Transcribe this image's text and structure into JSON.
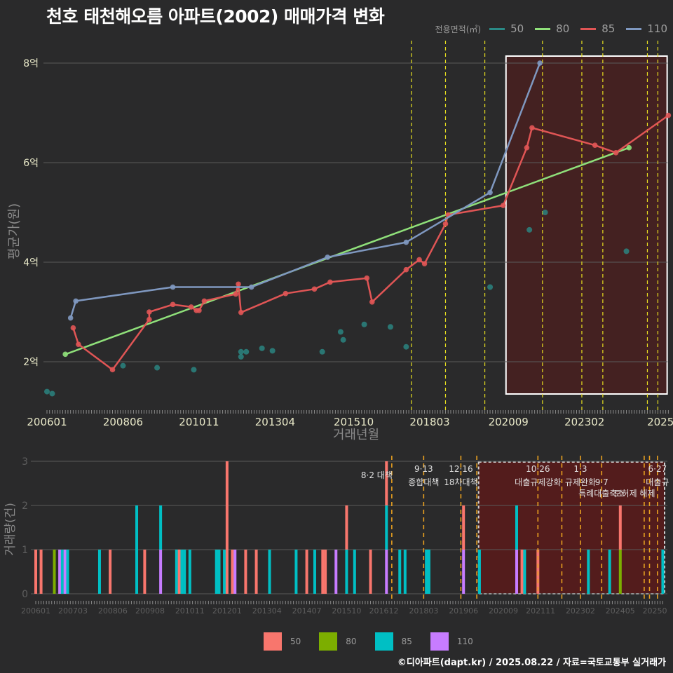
{
  "title": "천호 태천해오름 아파트(2002) 매매가격 변화",
  "credit": "©디아파트(dapt.kr) / 2025.08.22 / 자료=국토교통부 실거래가",
  "colors": {
    "background": "#2a2a2b",
    "grid": "#5a5a5a",
    "s50": "#2a8a86",
    "s80": "#8fe07a",
    "s85": "#e05555",
    "s110": "#7f98c0",
    "bar50": "#f8766d",
    "bar80": "#7cae00",
    "bar85": "#00bfc4",
    "bar110": "#c77cff",
    "policy_line": "#e8e020",
    "policy_line_bottom": "#e8a020",
    "highlight_fill": "#5a1a1a"
  },
  "legend_top": {
    "title": "전용면적(㎡)",
    "items": [
      {
        "label": "50",
        "color": "#2a8a86"
      },
      {
        "label": "80",
        "color": "#8fe07a"
      },
      {
        "label": "85",
        "color": "#e05555"
      },
      {
        "label": "110",
        "color": "#7f98c0"
      }
    ]
  },
  "legend_bottom": {
    "items": [
      {
        "label": "50",
        "color": "#f8766d"
      },
      {
        "label": "80",
        "color": "#7cae00"
      },
      {
        "label": "85",
        "color": "#00bfc4"
      },
      {
        "label": "110",
        "color": "#c77cff"
      }
    ]
  },
  "chart_data": [
    {
      "type": "line",
      "title": "천호 태천해오름 아파트(2002) 매매가격 변화",
      "xlabel": "거래년월",
      "ylabel": "평균가(원)",
      "x_unit": "months since 2006-01",
      "x_ticks": [
        {
          "label": "200601",
          "m": 0
        },
        {
          "label": "200806",
          "m": 29
        },
        {
          "label": "201011",
          "m": 58
        },
        {
          "label": "201304",
          "m": 87
        },
        {
          "label": "201510",
          "m": 117
        },
        {
          "label": "201803",
          "m": 146
        },
        {
          "label": "202009",
          "m": 176
        },
        {
          "label": "202302",
          "m": 205
        },
        {
          "label": "2025",
          "m": 234
        }
      ],
      "y_ticks": [
        {
          "label": "2억",
          "v": 2
        },
        {
          "label": "4억",
          "v": 4
        },
        {
          "label": "6억",
          "v": 6
        },
        {
          "label": "8억",
          "v": 8
        }
      ],
      "ylim": [
        1.2,
        8.4
      ],
      "xlim": [
        0,
        237
      ],
      "grid": true,
      "legend_position": "top-right",
      "policy_months": [
        139,
        152,
        167,
        189,
        204,
        212,
        229,
        233
      ],
      "highlight_range": [
        174,
        236
      ],
      "series": [
        {
          "name": "50",
          "mode": "points",
          "points": [
            [
              0,
              1.4
            ],
            [
              2,
              1.36
            ],
            [
              29,
              1.92
            ],
            [
              42,
              1.88
            ],
            [
              56,
              1.84
            ],
            [
              74,
              2.1
            ],
            [
              74,
              2.2
            ],
            [
              76,
              2.2
            ],
            [
              82,
              2.27
            ],
            [
              86,
              2.22
            ],
            [
              105,
              2.2
            ],
            [
              112,
              2.6
            ],
            [
              113,
              2.44
            ],
            [
              121,
              2.75
            ],
            [
              131,
              2.7
            ],
            [
              137,
              2.3
            ],
            [
              169,
              3.5
            ],
            [
              184,
              4.65
            ],
            [
              190,
              5.0
            ],
            [
              221,
              4.22
            ]
          ]
        },
        {
          "name": "80",
          "mode": "line",
          "points": [
            [
              7,
              2.15
            ],
            [
              222,
              6.3
            ]
          ]
        },
        {
          "name": "85",
          "mode": "line",
          "points": [
            [
              10,
              2.68
            ],
            [
              12,
              2.35
            ],
            [
              25,
              1.84
            ],
            [
              39,
              2.85
            ],
            [
              39,
              3.0
            ],
            [
              48,
              3.15
            ],
            [
              55,
              3.1
            ],
            [
              57,
              3.03
            ],
            [
              58,
              3.03
            ],
            [
              60,
              3.22
            ],
            [
              72,
              3.36
            ],
            [
              73,
              3.56
            ],
            [
              74,
              2.99
            ],
            [
              91,
              3.37
            ],
            [
              102,
              3.46
            ],
            [
              108,
              3.6
            ],
            [
              122,
              3.68
            ],
            [
              124,
              3.2
            ],
            [
              137,
              3.85
            ],
            [
              142,
              4.05
            ],
            [
              144,
              3.97
            ],
            [
              152,
              4.77
            ],
            [
              153,
              4.95
            ],
            [
              174,
              5.14
            ],
            [
              183,
              6.3
            ],
            [
              185,
              6.7
            ],
            [
              209,
              6.35
            ],
            [
              217,
              6.2
            ],
            [
              237,
              6.95
            ]
          ]
        },
        {
          "name": "110",
          "mode": "line",
          "points": [
            [
              9,
              2.88
            ],
            [
              11,
              3.22
            ],
            [
              48,
              3.5
            ],
            [
              78,
              3.5
            ],
            [
              107,
              4.1
            ],
            [
              137,
              4.4
            ],
            [
              169,
              5.4
            ],
            [
              188,
              8.0
            ]
          ]
        }
      ]
    },
    {
      "type": "bar",
      "xlabel": "",
      "ylabel": "거래량(건)",
      "x_ticks": [
        {
          "label": "200601",
          "m": 0
        },
        {
          "label": "200703",
          "m": 14
        },
        {
          "label": "200806",
          "m": 29
        },
        {
          "label": "200908",
          "m": 43
        },
        {
          "label": "201011",
          "m": 58
        },
        {
          "label": "201201",
          "m": 72
        },
        {
          "label": "201304",
          "m": 87
        },
        {
          "label": "201407",
          "m": 102
        },
        {
          "label": "201510",
          "m": 117
        },
        {
          "label": "201612",
          "m": 131
        },
        {
          "label": "201803",
          "m": 146
        },
        {
          "label": "201906",
          "m": 161
        },
        {
          "label": "202009",
          "m": 176
        },
        {
          "label": "202111",
          "m": 190
        },
        {
          "label": "202302",
          "m": 205
        },
        {
          "label": "202405",
          "m": 220
        },
        {
          "label": "20250",
          "m": 233
        }
      ],
      "y_ticks": [
        {
          "label": "0",
          "v": 0
        },
        {
          "label": "1",
          "v": 1
        },
        {
          "label": "2",
          "v": 2
        },
        {
          "label": "3",
          "v": 3
        }
      ],
      "ylim": [
        0,
        3
      ],
      "stack_order": [
        "110",
        "80",
        "85",
        "50"
      ],
      "bars": [
        {
          "m": 0,
          "s50": 1
        },
        {
          "m": 2,
          "s50": 1
        },
        {
          "m": 7,
          "s80": 1
        },
        {
          "m": 9,
          "s110": 1
        },
        {
          "m": 10,
          "s85": 1
        },
        {
          "m": 11,
          "s110": 1
        },
        {
          "m": 12,
          "s85": 1
        },
        {
          "m": 24,
          "s85": 1
        },
        {
          "m": 28,
          "s50": 1
        },
        {
          "m": 38,
          "s85": 2
        },
        {
          "m": 41,
          "s50": 1
        },
        {
          "m": 47,
          "s110": 1,
          "s85": 1
        },
        {
          "m": 53,
          "s85": 1
        },
        {
          "m": 54,
          "s50": 1
        },
        {
          "m": 55,
          "s85": 1
        },
        {
          "m": 56,
          "s85": 1
        },
        {
          "m": 58,
          "s85": 1
        },
        {
          "m": 68,
          "s85": 1
        },
        {
          "m": 69,
          "s85": 1
        },
        {
          "m": 71,
          "s85": 1
        },
        {
          "m": 72,
          "s50": 3
        },
        {
          "m": 74,
          "s50": 1
        },
        {
          "m": 75,
          "s110": 1
        },
        {
          "m": 79,
          "s50": 1
        },
        {
          "m": 83,
          "s50": 1
        },
        {
          "m": 88,
          "s85": 1
        },
        {
          "m": 98,
          "s85": 1
        },
        {
          "m": 102,
          "s50": 1
        },
        {
          "m": 105,
          "s85": 1
        },
        {
          "m": 108,
          "s50": 1
        },
        {
          "m": 109,
          "s50": 1
        },
        {
          "m": 113,
          "s110": 1
        },
        {
          "m": 117,
          "s85": 1,
          "s50": 1
        },
        {
          "m": 120,
          "s85": 1
        },
        {
          "m": 126,
          "s50": 1
        },
        {
          "m": 132,
          "s110": 1,
          "s85": 1,
          "s50": 1
        },
        {
          "m": 137,
          "s85": 1
        },
        {
          "m": 139,
          "s85": 1
        },
        {
          "m": 147,
          "s85": 1
        },
        {
          "m": 148,
          "s85": 1
        },
        {
          "m": 161,
          "s110": 1,
          "s50": 1
        },
        {
          "m": 167,
          "s85": 1
        },
        {
          "m": 181,
          "s110": 1,
          "s85": 1
        },
        {
          "m": 183,
          "s50": 1
        },
        {
          "m": 184,
          "s85": 1
        },
        {
          "m": 189,
          "s50": 1
        },
        {
          "m": 208,
          "s85": 1
        },
        {
          "m": 216,
          "s85": 1
        },
        {
          "m": 220,
          "s80": 1,
          "s50": 1
        },
        {
          "m": 236,
          "s85": 1
        }
      ],
      "policy_months": [
        134,
        146,
        160,
        166,
        189,
        198,
        205,
        213,
        229,
        231,
        234
      ],
      "highlight_range": [
        168,
        236
      ],
      "annotations": [
        {
          "m": 134,
          "line1": "",
          "line2": "8·2 대책",
          "align": "end"
        },
        {
          "m": 146,
          "line1": "9·13",
          "line2": "종합대책"
        },
        {
          "m": 160,
          "line1": "12·16",
          "line2": "18차대책"
        },
        {
          "m": 189,
          "line1": "10·26",
          "line2": "대출규제강화"
        },
        {
          "m": 205,
          "line1": "1·3",
          "line2": "규제완화"
        },
        {
          "m": 213,
          "line1": "",
          "line2": "9·7",
          "line3": "특례대출축소"
        },
        {
          "m": 229,
          "line1": "",
          "line2": "",
          "line3": "토허제 해제"
        },
        {
          "m": 234,
          "line1": "6·27",
          "line2": "대출규"
        }
      ]
    }
  ]
}
